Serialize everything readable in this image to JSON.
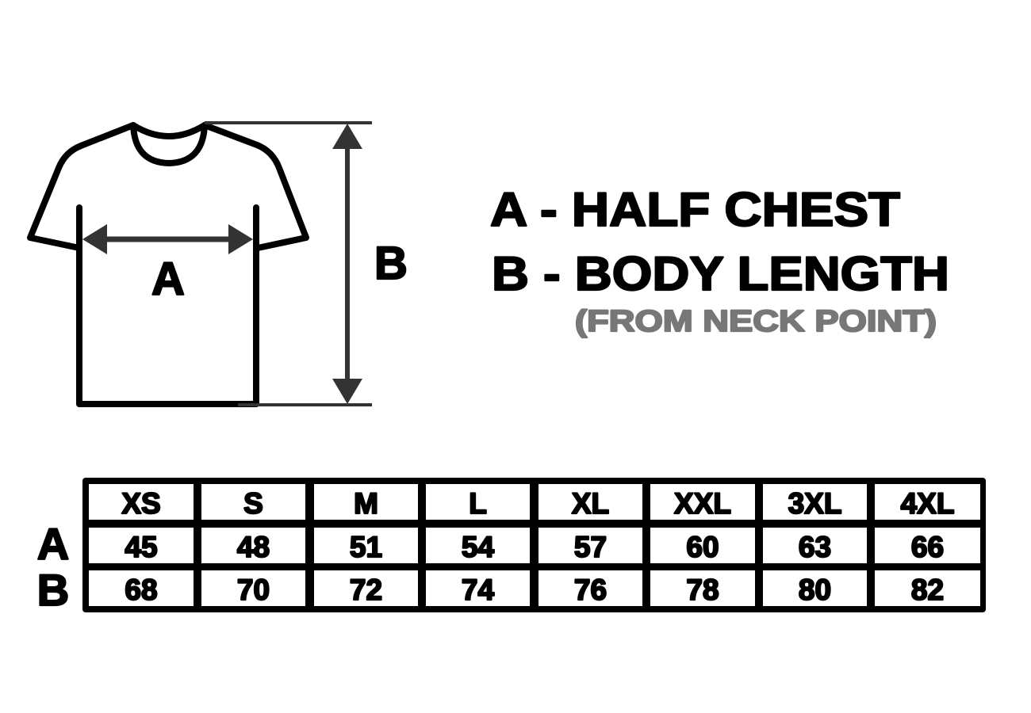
{
  "diagram": {
    "label_a": "A",
    "label_b": "B",
    "arrow_color": "#333333",
    "outline_color": "#000000"
  },
  "legend": {
    "line_a": "A - HALF CHEST",
    "line_b": "B - BODY LENGTH",
    "note": "(FROM NECK POINT)",
    "note_color": "#777777"
  },
  "table": {
    "sizes": [
      "XS",
      "S",
      "M",
      "L",
      "XL",
      "XXL",
      "3XL",
      "4XL"
    ],
    "rows": [
      {
        "label": "A",
        "values": [
          "45",
          "48",
          "51",
          "54",
          "57",
          "60",
          "63",
          "66"
        ]
      },
      {
        "label": "B",
        "values": [
          "68",
          "70",
          "72",
          "74",
          "76",
          "78",
          "80",
          "82"
        ]
      }
    ]
  }
}
